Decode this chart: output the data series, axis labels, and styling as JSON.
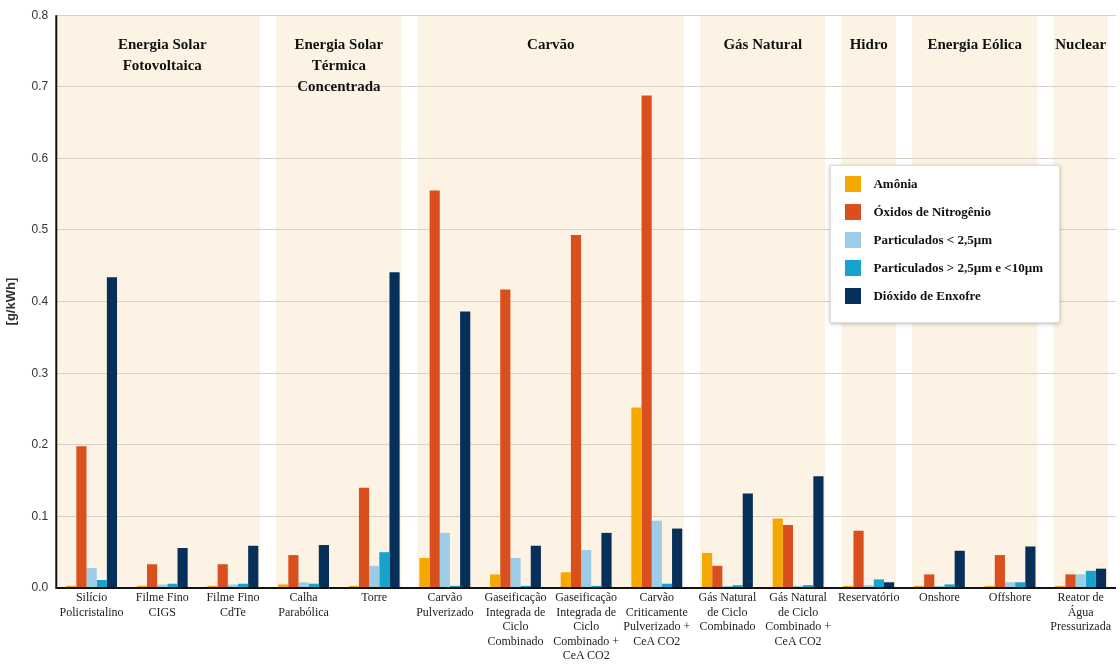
{
  "chart_data": {
    "type": "bar",
    "ylabel": "[g/kWh]",
    "categories": [
      "Silício Policristalino",
      "Filme Fino CIGS",
      "Filme Fino CdTe",
      "Calha Parabólica",
      "Torre",
      "Carvão Pulverizado",
      "Gaseificação Integrada de Ciclo Combinado",
      "Gaseificação Integrada de Ciclo Combinado + CeA CO2",
      "Carvão Criticamente Pulverizado + CeA CO2",
      "Gás Natural de Ciclo Combinado",
      "Gás Natural de Ciclo Combinado + CeA CO2",
      "Reservatório",
      "Onshore",
      "Offshore",
      "Reator de Água Pressurizada"
    ],
    "series": [
      {
        "name": "Amônia",
        "color": "#f5a800",
        "values": [
          0.003,
          0.003,
          0.003,
          0.005,
          0.003,
          0.042,
          0.019,
          0.022,
          0.252,
          0.049,
          0.097,
          0.003,
          0.003,
          0.003,
          0.003
        ]
      },
      {
        "name": "Óxidos de Nitrogênio",
        "color": "#d9501e",
        "values": [
          0.198,
          0.033,
          0.033,
          0.046,
          0.14,
          0.555,
          0.417,
          0.493,
          0.688,
          0.031,
          0.088,
          0.08,
          0.019,
          0.046,
          0.019
        ]
      },
      {
        "name": "Particulados < 2,5µm",
        "color": "#9dcde6",
        "values": [
          0.028,
          0.005,
          0.005,
          0.008,
          0.031,
          0.077,
          0.042,
          0.053,
          0.094,
          0.003,
          0.003,
          0.004,
          0.003,
          0.008,
          0.019
        ]
      },
      {
        "name": "Particulados > 2,5µm e <10µm",
        "color": "#17a3cc",
        "values": [
          0.011,
          0.006,
          0.006,
          0.006,
          0.05,
          0.003,
          0.003,
          0.003,
          0.006,
          0.004,
          0.004,
          0.012,
          0.005,
          0.008,
          0.024
        ]
      },
      {
        "name": "Dióxido de Enxofre",
        "color": "#06305a",
        "values": [
          0.434,
          0.056,
          0.059,
          0.06,
          0.441,
          0.386,
          0.059,
          0.077,
          0.083,
          0.132,
          0.156,
          0.008,
          0.052,
          0.058,
          0.027
        ]
      }
    ],
    "bands": [
      {
        "axis": "x",
        "from": "Silício Policristalino",
        "to": "Filme Fino CdTe",
        "label": "Energia Solar Fotovoltaica",
        "color": "#fdf3e4"
      },
      {
        "axis": "x",
        "from": "Calha Parabólica",
        "to": "Torre",
        "label": "Energia Solar Térmica Concentrada",
        "color": "#fdf3e4"
      },
      {
        "axis": "x",
        "from": "Carvão Pulverizado",
        "to": "Carvão Criticamente Pulverizado + CeA CO2",
        "label": "Carvão",
        "color": "#fdf3e4"
      },
      {
        "axis": "x",
        "from": "Gás Natural de Ciclo Combinado",
        "to": "Gás Natural de Ciclo Combinado + CeA CO2",
        "label": "Gás Natural",
        "color": "#fdf3e4"
      },
      {
        "axis": "x",
        "from": "Reservatório",
        "to": "Reservatório",
        "label": "Hidro",
        "color": "#fdf3e4"
      },
      {
        "axis": "x",
        "from": "Onshore",
        "to": "Offshore",
        "label": "Energia Eólica",
        "color": "#fdf3e4"
      },
      {
        "axis": "x",
        "from": "Reator de Água Pressurizada",
        "to": "Reator de Água Pressurizada",
        "label": "Nuclear",
        "color": "#fdf3e4"
      }
    ],
    "ylim": [
      0,
      0.8
    ],
    "yticks": [
      {
        "value": 0,
        "label": "0.0"
      },
      {
        "value": 0.1,
        "label": "0.1"
      },
      {
        "value": 0.2,
        "label": "0.2"
      },
      {
        "value": 0.3,
        "label": "0.3"
      },
      {
        "value": 0.4,
        "label": "0.4"
      },
      {
        "value": 0.5,
        "label": "0.5"
      },
      {
        "value": 0.6,
        "label": "0.6"
      },
      {
        "value": 0.7,
        "label": "0.7"
      },
      {
        "value": 0.8,
        "label": "0.8"
      }
    ],
    "grid": "y",
    "legend": "top right"
  }
}
